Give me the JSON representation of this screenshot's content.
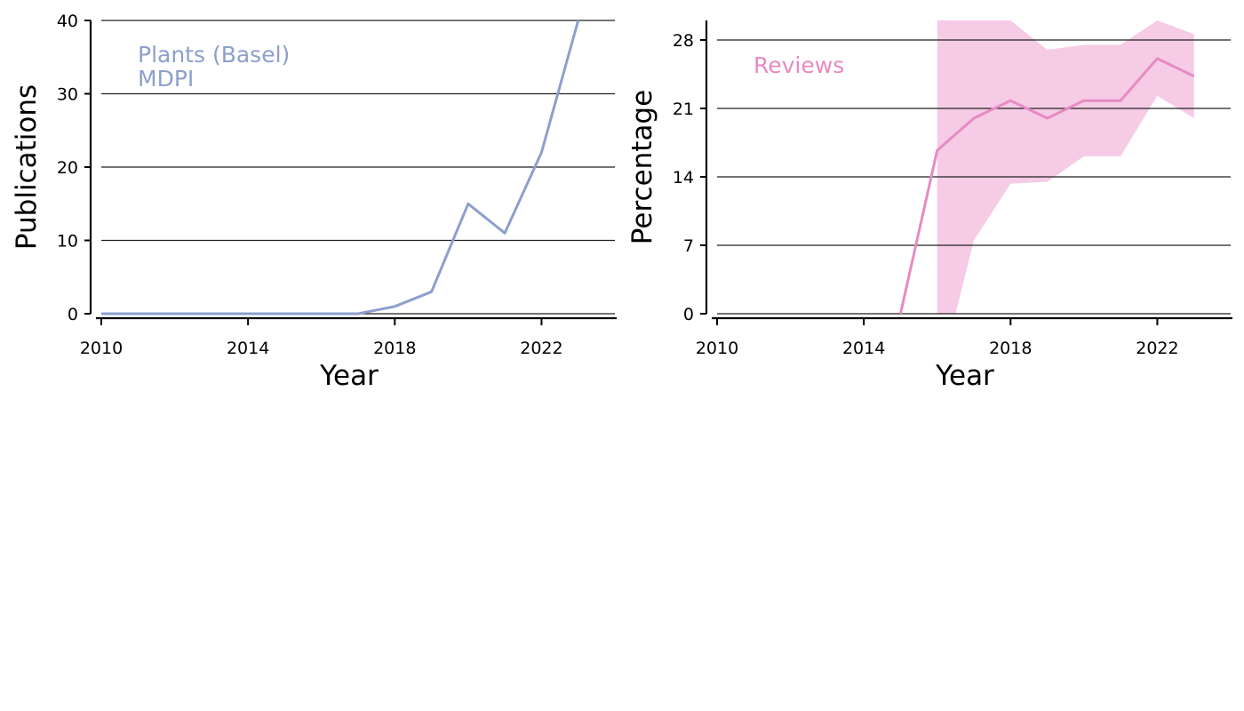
{
  "chart_data": [
    {
      "type": "line",
      "xlabel": "Year",
      "ylabel": "Publications",
      "xlim": [
        2010,
        2024
      ],
      "ylim": [
        0,
        40
      ],
      "xticks": [
        2010,
        2014,
        2018,
        2022
      ],
      "yticks": [
        0,
        10,
        20,
        30,
        40
      ],
      "grid": "horizontal",
      "annotation": [
        "Plants (Basel)",
        "MDPI"
      ],
      "color": "#8da0cb",
      "series": [
        {
          "x": [
            2010,
            2011,
            2012,
            2013,
            2014,
            2015,
            2016,
            2017,
            2018,
            2019,
            2020,
            2021,
            2022,
            2023
          ],
          "values": [
            0,
            0,
            0,
            0,
            0,
            0,
            0,
            0,
            1,
            3,
            15,
            11,
            22,
            40
          ]
        }
      ]
    },
    {
      "type": "area",
      "xlabel": "Year",
      "ylabel": "Percentage",
      "xlim": [
        2010,
        2024
      ],
      "ylim": [
        0,
        30
      ],
      "xticks": [
        2010,
        2014,
        2018,
        2022
      ],
      "yticks": [
        0,
        7,
        14,
        21,
        28
      ],
      "grid": "horizontal",
      "annotation": [
        "Reviews"
      ],
      "color": "#e78ac3",
      "band_color": "#f5cbe6",
      "series": [
        {
          "x": [
            2015,
            2016,
            2017,
            2018,
            2019,
            2020,
            2021,
            2022,
            2023
          ],
          "values": [
            0,
            16.7,
            20.0,
            21.8,
            20.0,
            21.8,
            21.8,
            26.1,
            24.3
          ]
        }
      ],
      "band": {
        "x": [
          2016,
          2016.5,
          2017,
          2018,
          2019,
          2020,
          2021,
          2022,
          2023
        ],
        "lower": [
          0,
          0,
          7.5,
          13.3,
          13.5,
          16.1,
          16.1,
          22.3,
          20.0
        ],
        "upper": [
          30,
          30,
          30,
          30,
          27.0,
          27.5,
          27.5,
          30,
          28.6
        ]
      }
    }
  ]
}
